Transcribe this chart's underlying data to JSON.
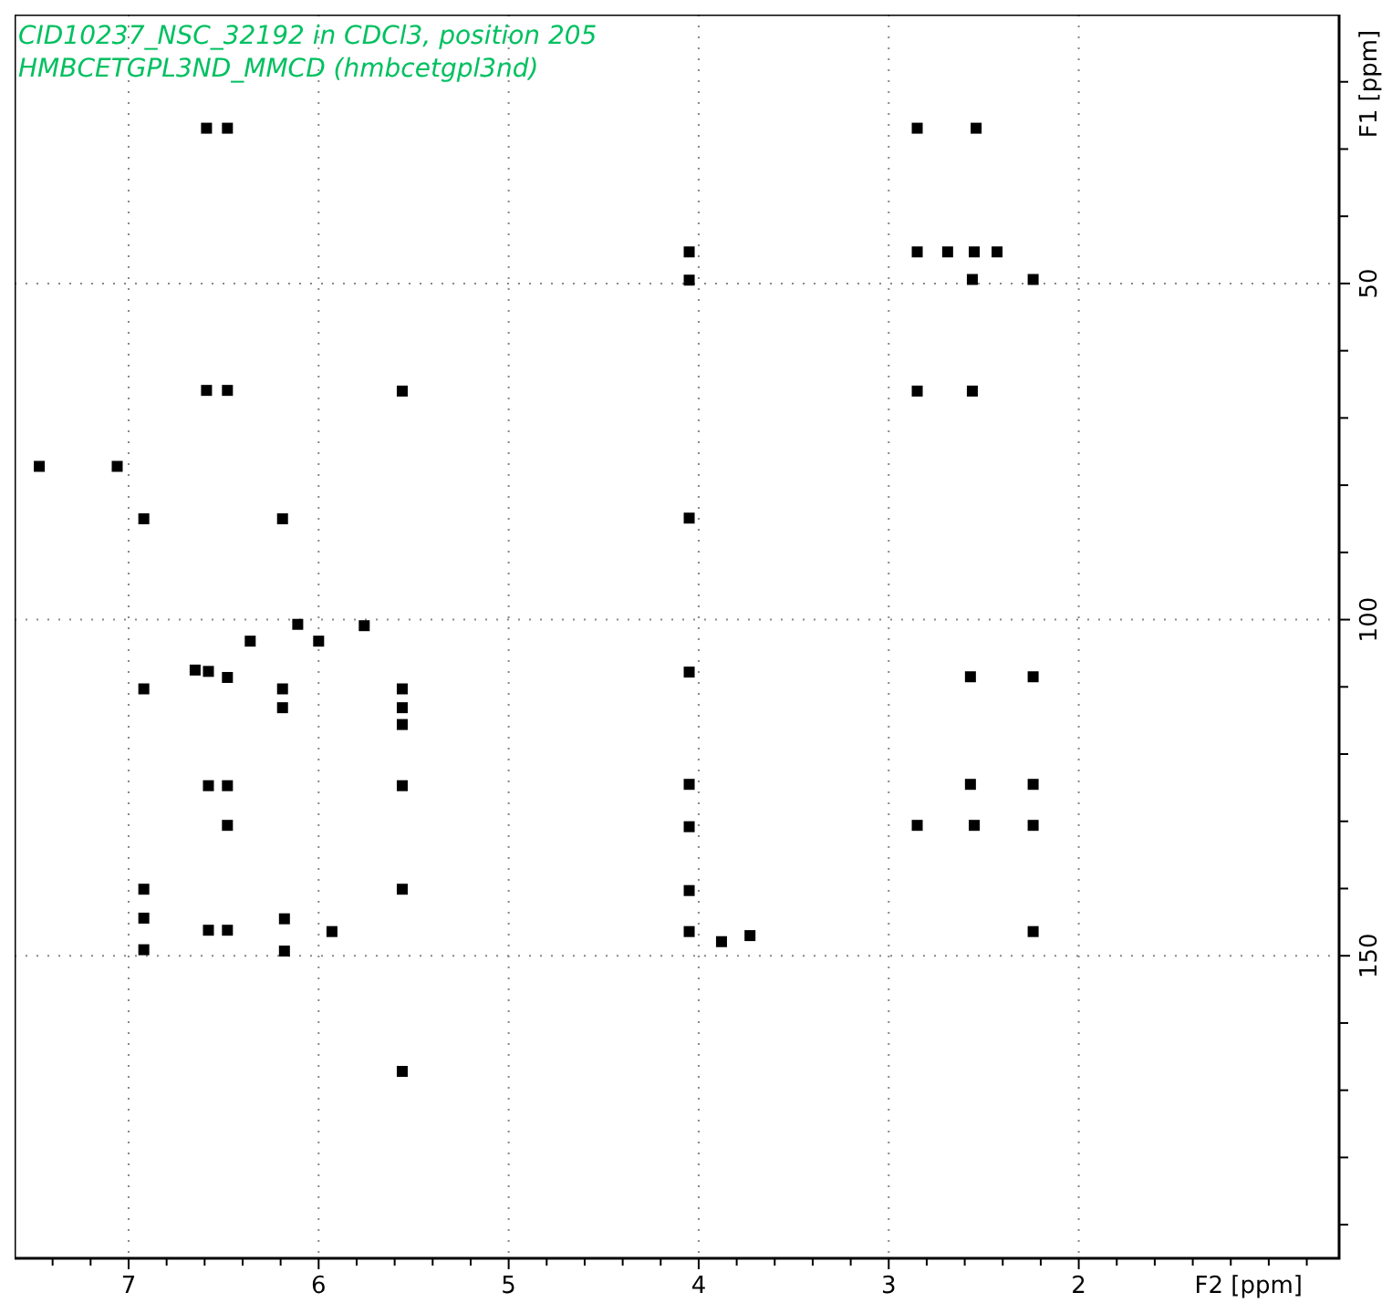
{
  "chart_data": {
    "type": "scatter",
    "title": "CID10237_NSC_32192 in CDCl3, position 205",
    "subtitle": "HMBCETGPL3ND_MMCD (hmbcetgpl3nd)",
    "xlabel": "F2 [ppm]",
    "ylabel": "F1 [ppm]",
    "xlim": [
      7.6,
      0.63
    ],
    "ylim": [
      195,
      10
    ],
    "xticks": [
      {
        "value": 7.4,
        "label": null
      },
      {
        "value": 7.2,
        "label": null
      },
      7,
      {
        "value": 6.8,
        "label": null
      },
      {
        "value": 6.6,
        "label": null
      },
      {
        "value": 6.4,
        "label": null
      },
      {
        "value": 6.2,
        "label": null
      },
      6,
      {
        "value": 5.8,
        "label": null
      },
      {
        "value": 5.6,
        "label": null
      },
      {
        "value": 5.4,
        "label": null
      },
      {
        "value": 5.2,
        "label": null
      },
      5,
      {
        "value": 4.8,
        "label": null
      },
      {
        "value": 4.6,
        "label": null
      },
      {
        "value": 4.4,
        "label": null
      },
      {
        "value": 4.2,
        "label": null
      },
      4,
      {
        "value": 3.8,
        "label": null
      },
      {
        "value": 3.6,
        "label": null
      },
      {
        "value": 3.4,
        "label": null
      },
      {
        "value": 3.2,
        "label": null
      },
      3,
      {
        "value": 2.8,
        "label": null
      },
      {
        "value": 2.6,
        "label": null
      },
      {
        "value": 2.4,
        "label": null
      },
      {
        "value": 2.2,
        "label": null
      },
      2,
      {
        "value": 1.8,
        "label": null
      },
      {
        "value": 1.6,
        "label": null
      },
      {
        "value": 1.4,
        "label": null
      },
      {
        "value": 1.2,
        "label": null
      },
      {
        "value": 1,
        "label": null
      },
      {
        "value": 0.8,
        "label": null
      }
    ],
    "yticks": [
      {
        "value": 20,
        "label": null
      },
      {
        "value": 30,
        "label": null
      },
      {
        "value": 40,
        "label": null
      },
      50,
      {
        "value": 60,
        "label": null
      },
      {
        "value": 70,
        "label": null
      },
      {
        "value": 80,
        "label": null
      },
      {
        "value": 90,
        "label": null
      },
      100,
      {
        "value": 110,
        "label": null
      },
      {
        "value": 120,
        "label": null
      },
      {
        "value": 130,
        "label": null
      },
      {
        "value": 140,
        "label": null
      },
      150,
      {
        "value": 160,
        "label": null
      },
      {
        "value": 170,
        "label": null
      },
      {
        "value": 180,
        "label": null
      },
      {
        "value": 190,
        "label": null
      }
    ],
    "grid": true,
    "marker": "square",
    "series": [
      {
        "color": "#000000",
        "x": [
          6.59,
          6.48,
          4.05,
          4.05,
          6.59,
          6.48,
          5.56,
          7.47,
          7.06,
          6.92,
          6.19,
          4.05,
          2.85,
          2.54,
          2.85,
          2.69,
          2.55,
          2.43,
          2.56,
          2.24,
          2.85,
          2.56,
          4.05,
          2.57,
          2.24,
          4.05,
          2.57,
          2.24,
          4.05,
          2.85,
          2.55,
          2.24,
          4.05,
          4.05,
          3.88,
          3.73,
          2.24,
          6.11,
          5.76,
          6.36,
          6.0,
          6.65,
          6.58,
          6.48,
          6.92,
          6.19,
          6.19,
          5.56,
          5.56,
          5.56,
          6.58,
          6.48,
          5.56,
          6.48,
          6.92,
          5.56,
          6.92,
          6.18,
          6.58,
          6.48,
          5.93,
          6.92,
          6.18,
          5.56
        ],
        "values": [
          26.9,
          26.9,
          45.3,
          49.5,
          65.9,
          65.9,
          66.0,
          77.2,
          77.2,
          85.0,
          85.0,
          84.9,
          26.9,
          26.9,
          45.3,
          45.3,
          45.3,
          45.3,
          49.4,
          49.4,
          66.0,
          66.0,
          107.8,
          108.5,
          108.5,
          124.5,
          124.5,
          124.5,
          130.8,
          130.6,
          130.6,
          130.6,
          140.3,
          146.4,
          147.9,
          147.0,
          146.4,
          100.7,
          100.9,
          103.2,
          103.2,
          107.5,
          107.7,
          108.6,
          110.3,
          110.3,
          113.1,
          110.3,
          113.1,
          115.6,
          124.7,
          124.7,
          124.7,
          130.6,
          140.1,
          140.1,
          144.4,
          144.5,
          146.2,
          146.2,
          146.4,
          149.1,
          149.3,
          167.2
        ]
      }
    ]
  }
}
